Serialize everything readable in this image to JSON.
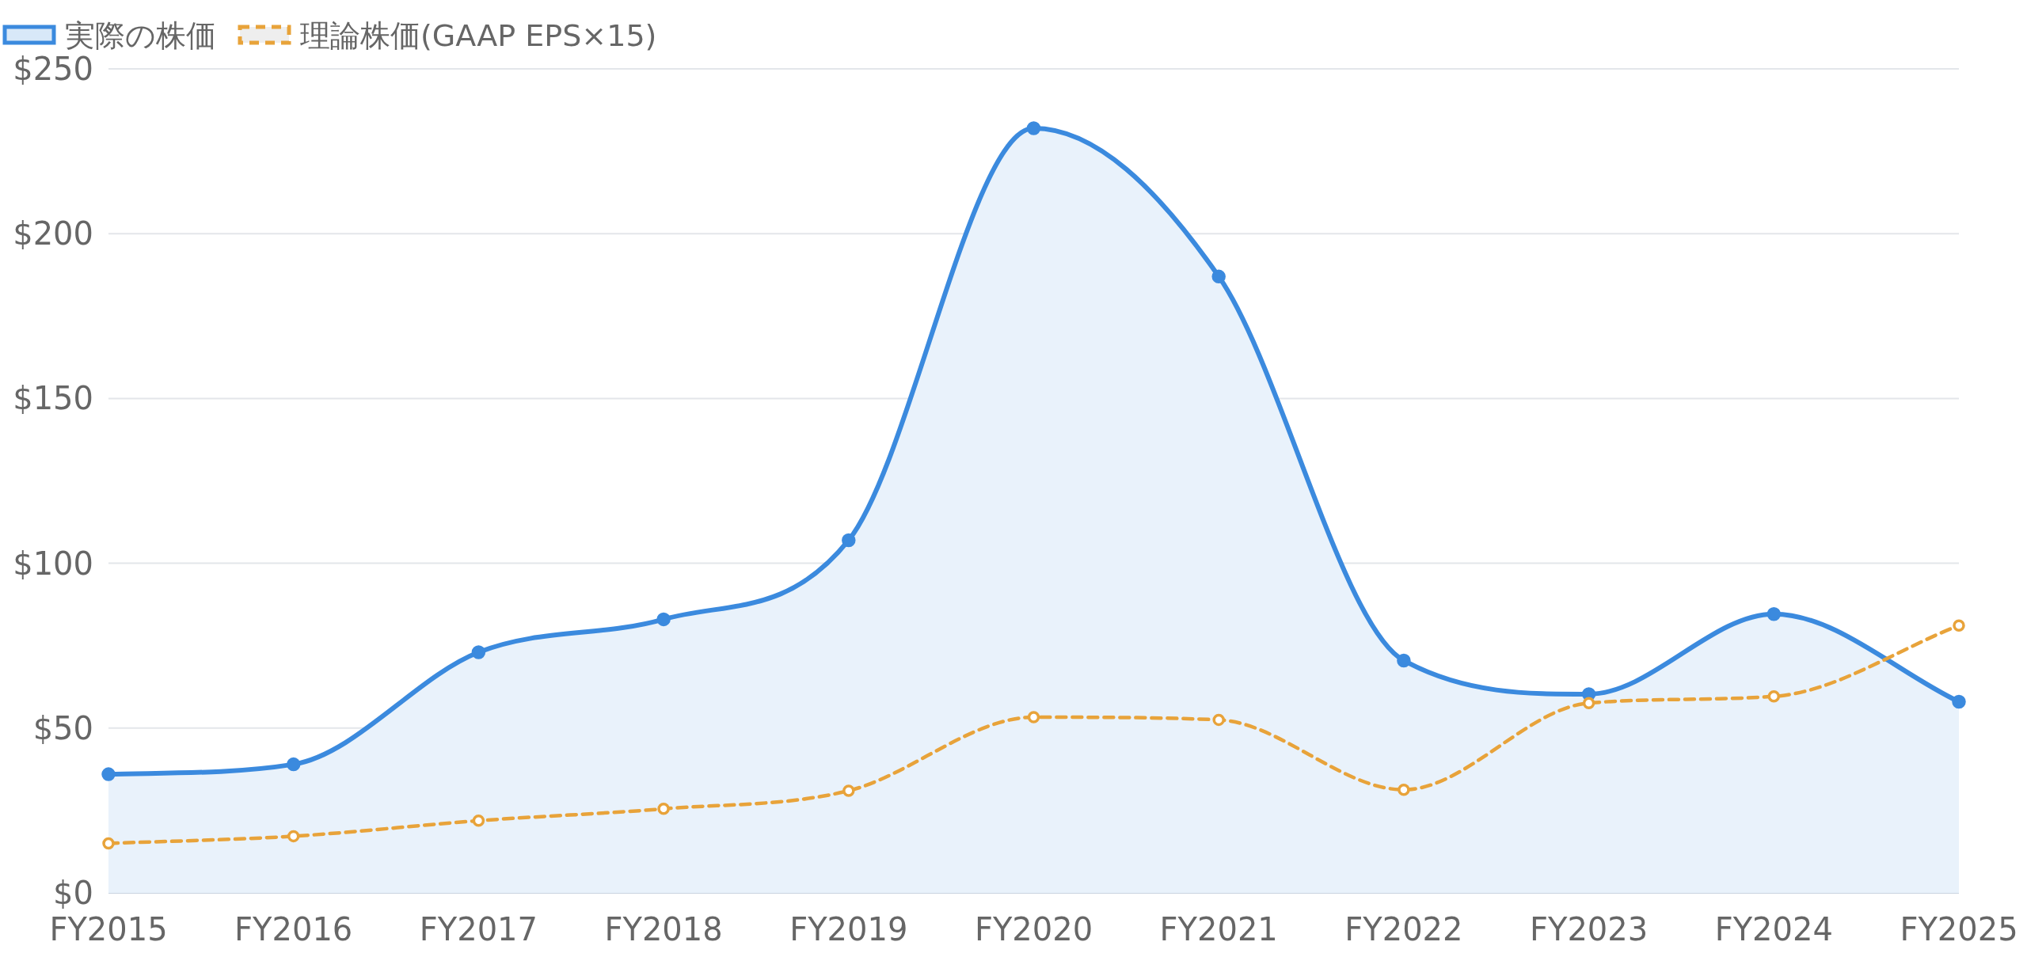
{
  "chart_data": {
    "type": "line",
    "categories": [
      "FY2015",
      "FY2016",
      "FY2017",
      "FY2018",
      "FY2019",
      "FY2020",
      "FY2021",
      "FY2022",
      "FY2023",
      "FY2024",
      "FY2025"
    ],
    "series": [
      {
        "name": "実際の株価",
        "type": "area",
        "color": "#3b8ade",
        "line_style": "solid",
        "values": [
          36,
          39,
          73,
          83,
          107,
          232,
          187,
          70.5,
          60.3,
          84.6,
          58
        ]
      },
      {
        "name": "理論株価(GAAP EPS×15)",
        "type": "line",
        "color": "#e8a33a",
        "line_style": "dashed",
        "values": [
          15,
          17.2,
          21.9,
          25.5,
          31,
          53.3,
          52.5,
          31.3,
          57.6,
          59.6,
          81.1
        ]
      }
    ],
    "ylim": [
      0,
      250
    ],
    "yticks": [
      {
        "value": 0,
        "label": "$0"
      },
      {
        "value": 50,
        "label": "$50"
      },
      {
        "value": 100,
        "label": "$100"
      },
      {
        "value": 150,
        "label": "$150"
      },
      {
        "value": 200,
        "label": "$200"
      },
      {
        "value": 250,
        "label": "$250"
      }
    ],
    "grid": "y",
    "legend": "top left",
    "marker": "circle"
  }
}
